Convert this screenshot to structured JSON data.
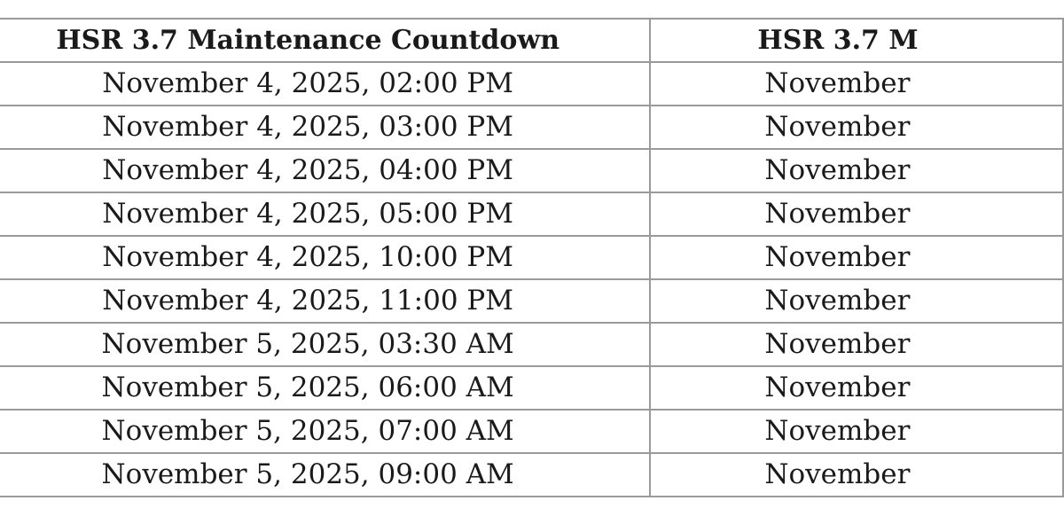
{
  "table": {
    "headers": [
      "HSR 3.7 Maintenance Countdown",
      "HSR 3.7 M"
    ],
    "rows": [
      [
        "November 4, 2025, 02:00 PM",
        "November"
      ],
      [
        "November 4, 2025, 03:00 PM",
        "November"
      ],
      [
        "November 4, 2025, 04:00 PM",
        "November"
      ],
      [
        "November 4, 2025, 05:00 PM",
        "November"
      ],
      [
        "November 4, 2025, 10:00 PM",
        "November"
      ],
      [
        "November 4, 2025, 11:00 PM",
        "November"
      ],
      [
        "November 5, 2025, 03:30 AM",
        "November"
      ],
      [
        "November 5, 2025, 06:00 AM",
        "November"
      ],
      [
        "November 5, 2025, 07:00 AM",
        "November"
      ],
      [
        "November 5, 2025, 09:00 AM",
        "November"
      ]
    ]
  }
}
